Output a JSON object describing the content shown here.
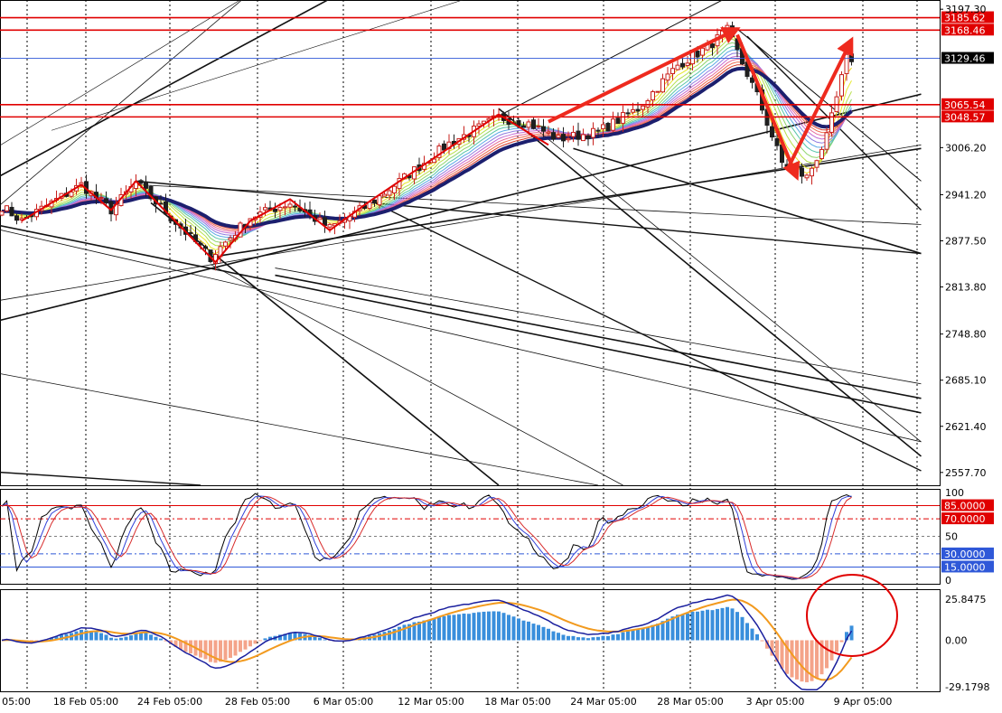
{
  "colors": {
    "background": "#ffffff",
    "grid": "#000000",
    "axis_text": "#000000",
    "bull_candle": "#c8201c",
    "bear_candle": "#1f1f1f",
    "red_line": "#e00000",
    "blue_line": "#2f58d8",
    "arrow": "#ee2a1e",
    "navy_ma": "#1c1f6e",
    "hist_pos": "#3a8fdc",
    "hist_neg": "#f4a48a",
    "macd_line": "#1a1f9e",
    "signal_line": "#f29a1e"
  },
  "chart_data": [
    {
      "id": "price",
      "type": "candlestick",
      "ylim": [
        2540,
        3210
      ],
      "price_axis_ticks": [
        "3197.30",
        "3006.20",
        "2941.20",
        "2877.50",
        "2813.80",
        "2748.80",
        "2685.10",
        "2621.40",
        "2557.70"
      ],
      "x_tick_labels": [
        "05:00",
        "18 Feb 05:00",
        "24 Feb 05:00",
        "28 Feb 05:00",
        "6 Mar 05:00",
        "12 Mar 05:00",
        "18 Mar 05:00",
        "24 Mar 05:00",
        "28 Mar 05:00",
        "3 Apr 05:00",
        "9 Apr 05:00"
      ],
      "horizontal_levels": [
        {
          "value": 3185.62,
          "label": "3185.62",
          "color": "#e00000"
        },
        {
          "value": 3168.46,
          "label": "3168.46",
          "color": "#e00000"
        },
        {
          "value": 3129.46,
          "label": "3129.46",
          "color": "#2f58d8",
          "current_price": true
        },
        {
          "value": 3065.54,
          "label": "3065.54",
          "color": "#e00000"
        },
        {
          "value": 3048.57,
          "label": "3048.57",
          "color": "#e00000"
        }
      ],
      "price_path_anchors": [
        {
          "bar": 0,
          "price": 2925
        },
        {
          "bar": 4,
          "price": 2905
        },
        {
          "bar": 16,
          "price": 2955
        },
        {
          "bar": 22,
          "price": 2920
        },
        {
          "bar": 27,
          "price": 2958
        },
        {
          "bar": 42,
          "price": 2855
        },
        {
          "bar": 50,
          "price": 2910
        },
        {
          "bar": 58,
          "price": 2930
        },
        {
          "bar": 66,
          "price": 2895
        },
        {
          "bar": 74,
          "price": 2928
        },
        {
          "bar": 90,
          "price": 3012
        },
        {
          "bar": 100,
          "price": 3048
        },
        {
          "bar": 106,
          "price": 3040
        },
        {
          "bar": 112,
          "price": 3018
        },
        {
          "bar": 120,
          "price": 3028
        },
        {
          "bar": 128,
          "price": 3060
        },
        {
          "bar": 136,
          "price": 3120
        },
        {
          "bar": 142,
          "price": 3145
        },
        {
          "bar": 146,
          "price": 3168
        },
        {
          "bar": 152,
          "price": 3078
        },
        {
          "bar": 157,
          "price": 2985
        },
        {
          "bar": 162,
          "price": 2965
        },
        {
          "bar": 166,
          "price": 3020
        },
        {
          "bar": 170,
          "price": 3129
        }
      ],
      "annotations": [
        {
          "type": "arrow",
          "from_bar": 110,
          "from_price": 3042,
          "to_bar": 148,
          "to_price": 3170
        },
        {
          "type": "arrow",
          "from_bar": 148,
          "from_price": 3162,
          "to_bar": 160,
          "to_price": 2965
        },
        {
          "type": "arrow",
          "from_bar": 158,
          "from_price": 2975,
          "to_bar": 171,
          "to_price": 3155
        }
      ]
    },
    {
      "id": "stochastic",
      "type": "line",
      "ylim": [
        0,
        100
      ],
      "tick_labels": [
        "100",
        "50",
        "0"
      ],
      "levels": [
        {
          "value": 85,
          "label": "85.0000",
          "color": "#e00000"
        },
        {
          "value": 70,
          "label": "70.0000",
          "color": "#e00000"
        },
        {
          "value": 30,
          "label": "30.0000",
          "color": "#2f58d8"
        },
        {
          "value": 15,
          "label": "15.0000",
          "color": "#2f58d8"
        }
      ]
    },
    {
      "id": "macd",
      "type": "histogram",
      "ylim": [
        -32,
        32
      ],
      "tick_labels": [
        "25.8475",
        "0.00",
        "-29.1798"
      ],
      "tick_values": [
        25.8475,
        0,
        -29.1798
      ],
      "annotations": [
        {
          "type": "ellipse",
          "color": "#e00000"
        }
      ]
    }
  ]
}
